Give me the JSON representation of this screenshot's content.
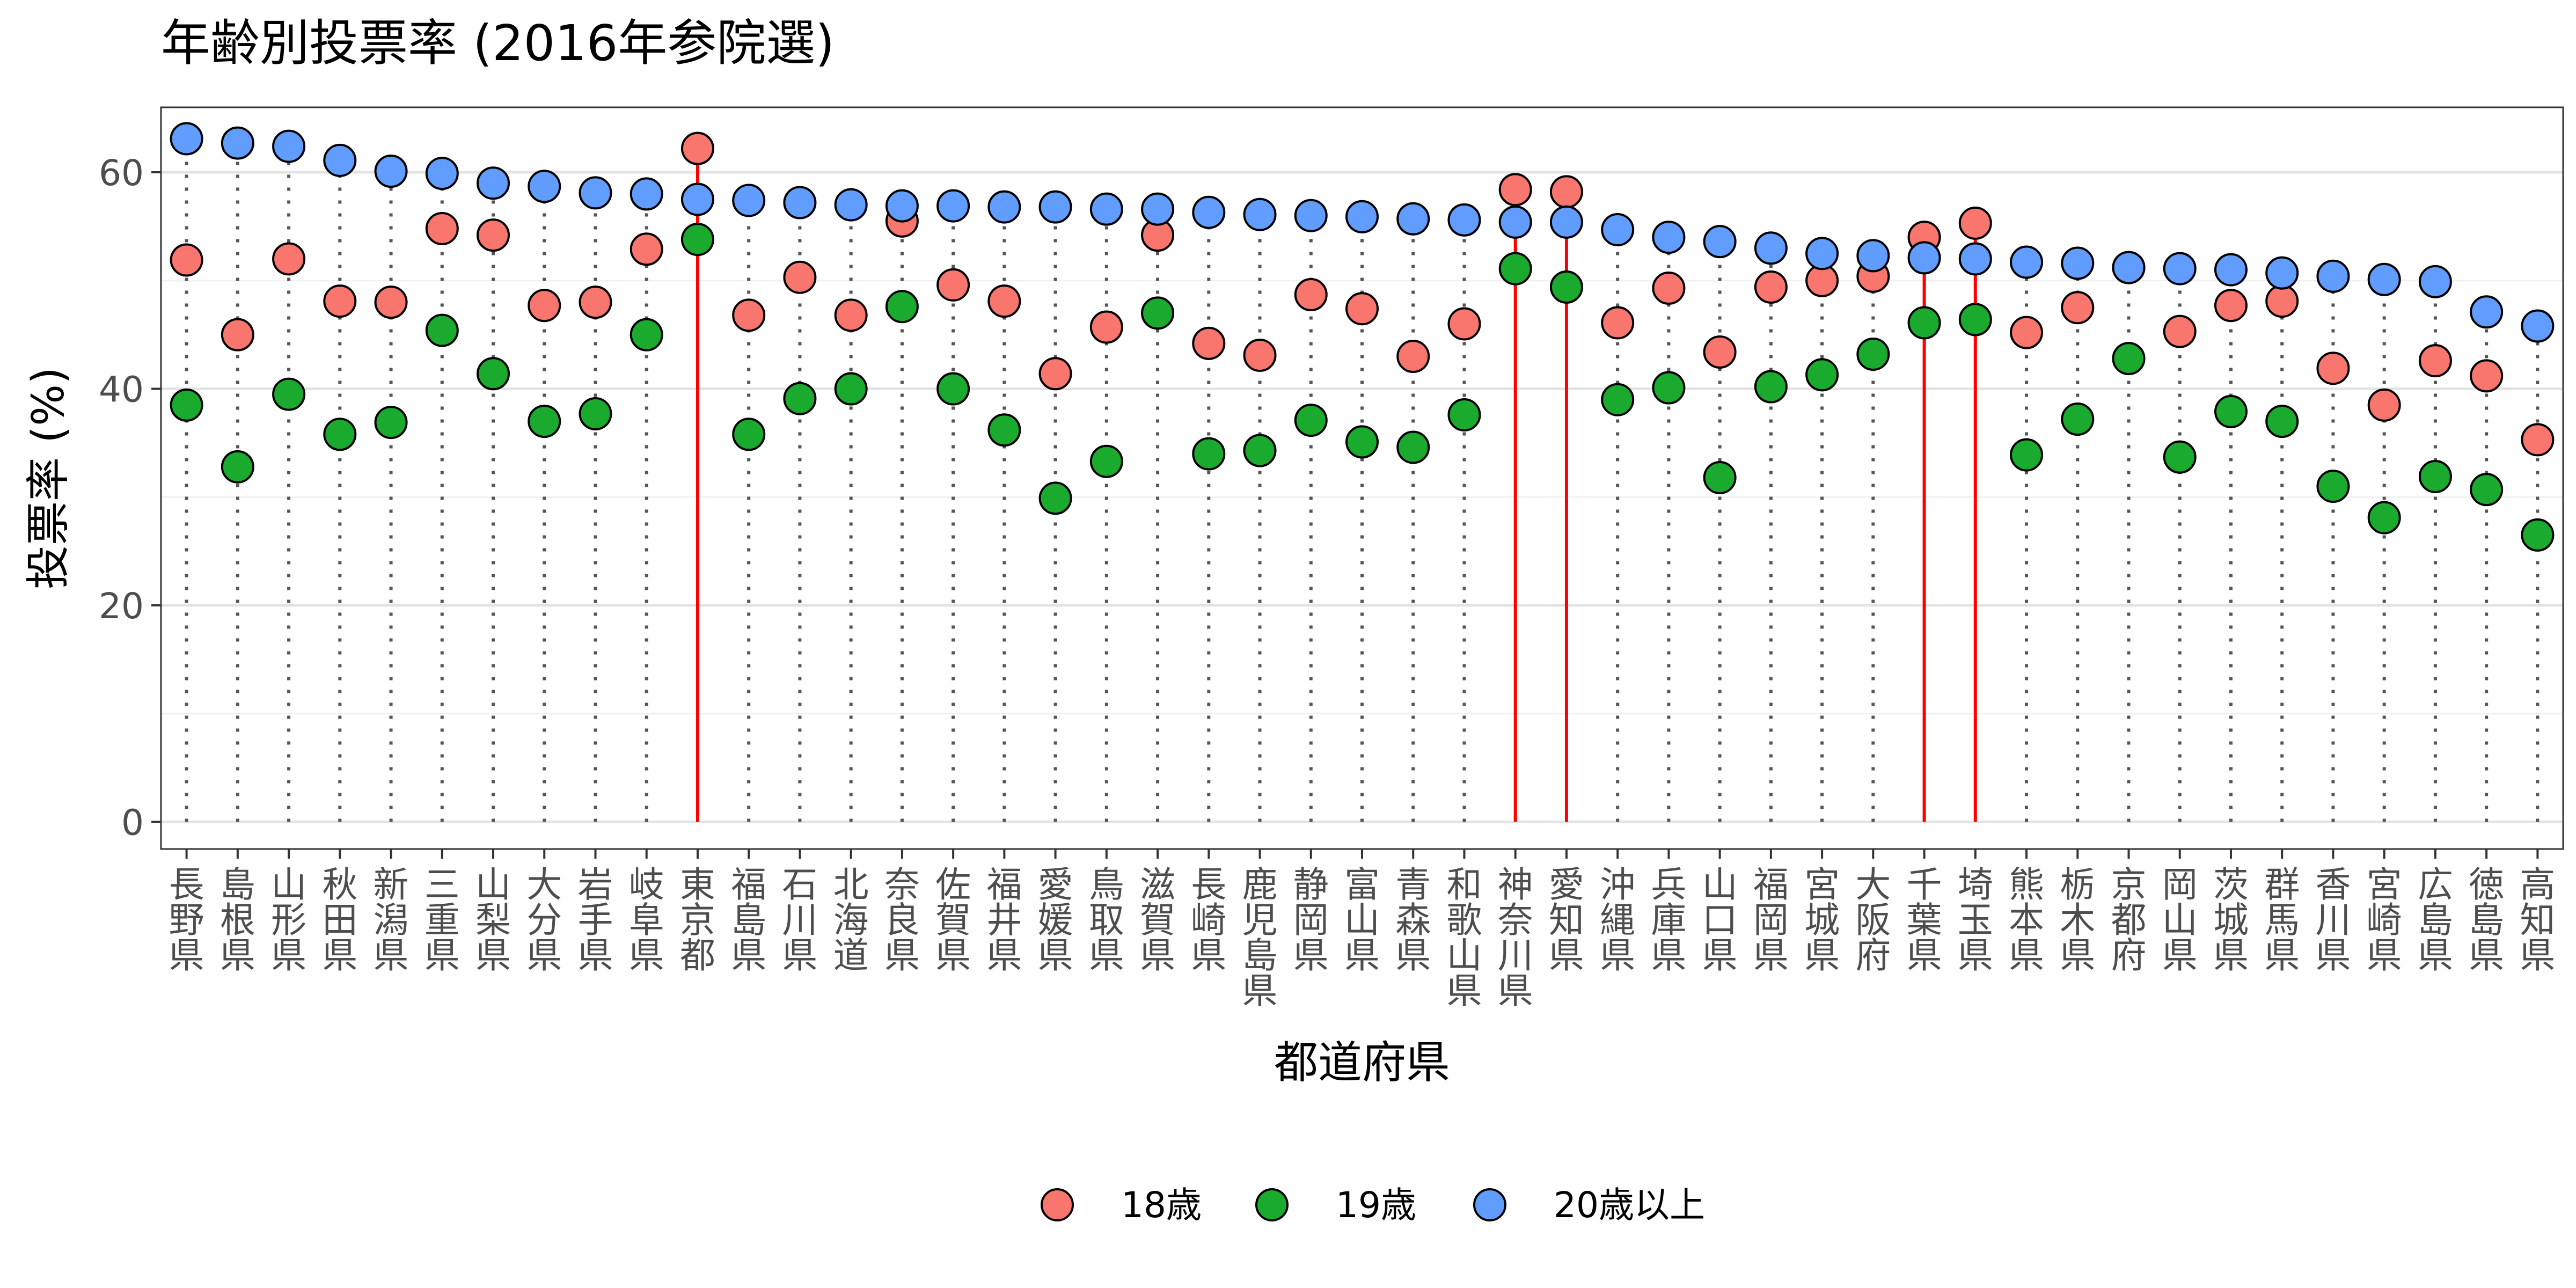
{
  "chart_data": {
    "type": "scatter",
    "title": "年齢別投票率 (2016年参院選)",
    "xlabel": "都道府県",
    "ylabel": "投票率 (%)",
    "ylim": [
      -2.5,
      66
    ],
    "yticks": [
      0,
      20,
      40,
      60
    ],
    "grid": true,
    "legend_position": "bottom",
    "highlight_color": "#ff0000",
    "categories": [
      "長野県",
      "島根県",
      "山形県",
      "秋田県",
      "新潟県",
      "三重県",
      "山梨県",
      "大分県",
      "岩手県",
      "岐阜県",
      "東京都",
      "福島県",
      "石川県",
      "北海道",
      "奈良県",
      "佐賀県",
      "福井県",
      "愛媛県",
      "鳥取県",
      "滋賀県",
      "長崎県",
      "鹿児島県",
      "静岡県",
      "富山県",
      "青森県",
      "和歌山県",
      "神奈川県",
      "愛知県",
      "沖縄県",
      "兵庫県",
      "山口県",
      "福岡県",
      "宮城県",
      "大阪府",
      "千葉県",
      "埼玉県",
      "熊本県",
      "栃木県",
      "京都府",
      "岡山県",
      "茨城県",
      "群馬県",
      "香川県",
      "宮崎県",
      "広島県",
      "徳島県",
      "高知県"
    ],
    "series": [
      {
        "name": "18歳",
        "color": "#f8766d",
        "values": [
          51.9,
          45.0,
          52.0,
          48.1,
          48.0,
          54.8,
          54.2,
          47.7,
          48.0,
          52.9,
          62.2,
          46.8,
          50.3,
          46.8,
          55.5,
          49.6,
          48.1,
          41.4,
          45.7,
          54.2,
          44.2,
          43.1,
          48.7,
          47.4,
          43.0,
          46.0,
          58.4,
          58.2,
          46.1,
          49.3,
          43.4,
          49.4,
          50.0,
          50.4,
          54.0,
          55.3,
          45.2,
          47.5,
          51.2,
          45.3,
          47.7,
          48.1,
          41.9,
          38.5,
          42.6,
          41.2,
          35.3
        ]
      },
      {
        "name": "19歳",
        "color": "#1aaa2e",
        "values": [
          38.5,
          32.8,
          39.5,
          35.8,
          36.9,
          45.4,
          41.4,
          37.0,
          37.7,
          45.0,
          53.8,
          35.8,
          39.1,
          40.0,
          47.6,
          40.0,
          36.2,
          29.9,
          33.3,
          47.0,
          34.0,
          34.3,
          37.1,
          35.1,
          34.6,
          37.6,
          51.1,
          49.4,
          39.0,
          40.1,
          31.8,
          40.2,
          41.3,
          43.2,
          46.1,
          46.4,
          33.9,
          37.2,
          42.8,
          33.7,
          37.9,
          37.0,
          31.0,
          28.1,
          31.9,
          30.7,
          26.5
        ]
      },
      {
        "name": "20歳以上",
        "color": "#619cff",
        "values": [
          63.1,
          62.7,
          62.4,
          61.1,
          60.1,
          59.9,
          59.0,
          58.7,
          58.1,
          58.0,
          57.5,
          57.4,
          57.2,
          57.0,
          56.9,
          56.9,
          56.8,
          56.8,
          56.6,
          56.6,
          56.3,
          56.1,
          56.0,
          55.9,
          55.7,
          55.6,
          55.4,
          55.4,
          54.7,
          54.0,
          53.6,
          53.0,
          52.5,
          52.3,
          52.1,
          52.0,
          51.7,
          51.6,
          51.2,
          51.1,
          51.0,
          50.7,
          50.4,
          50.1,
          49.9,
          47.1,
          45.8
        ]
      }
    ]
  }
}
